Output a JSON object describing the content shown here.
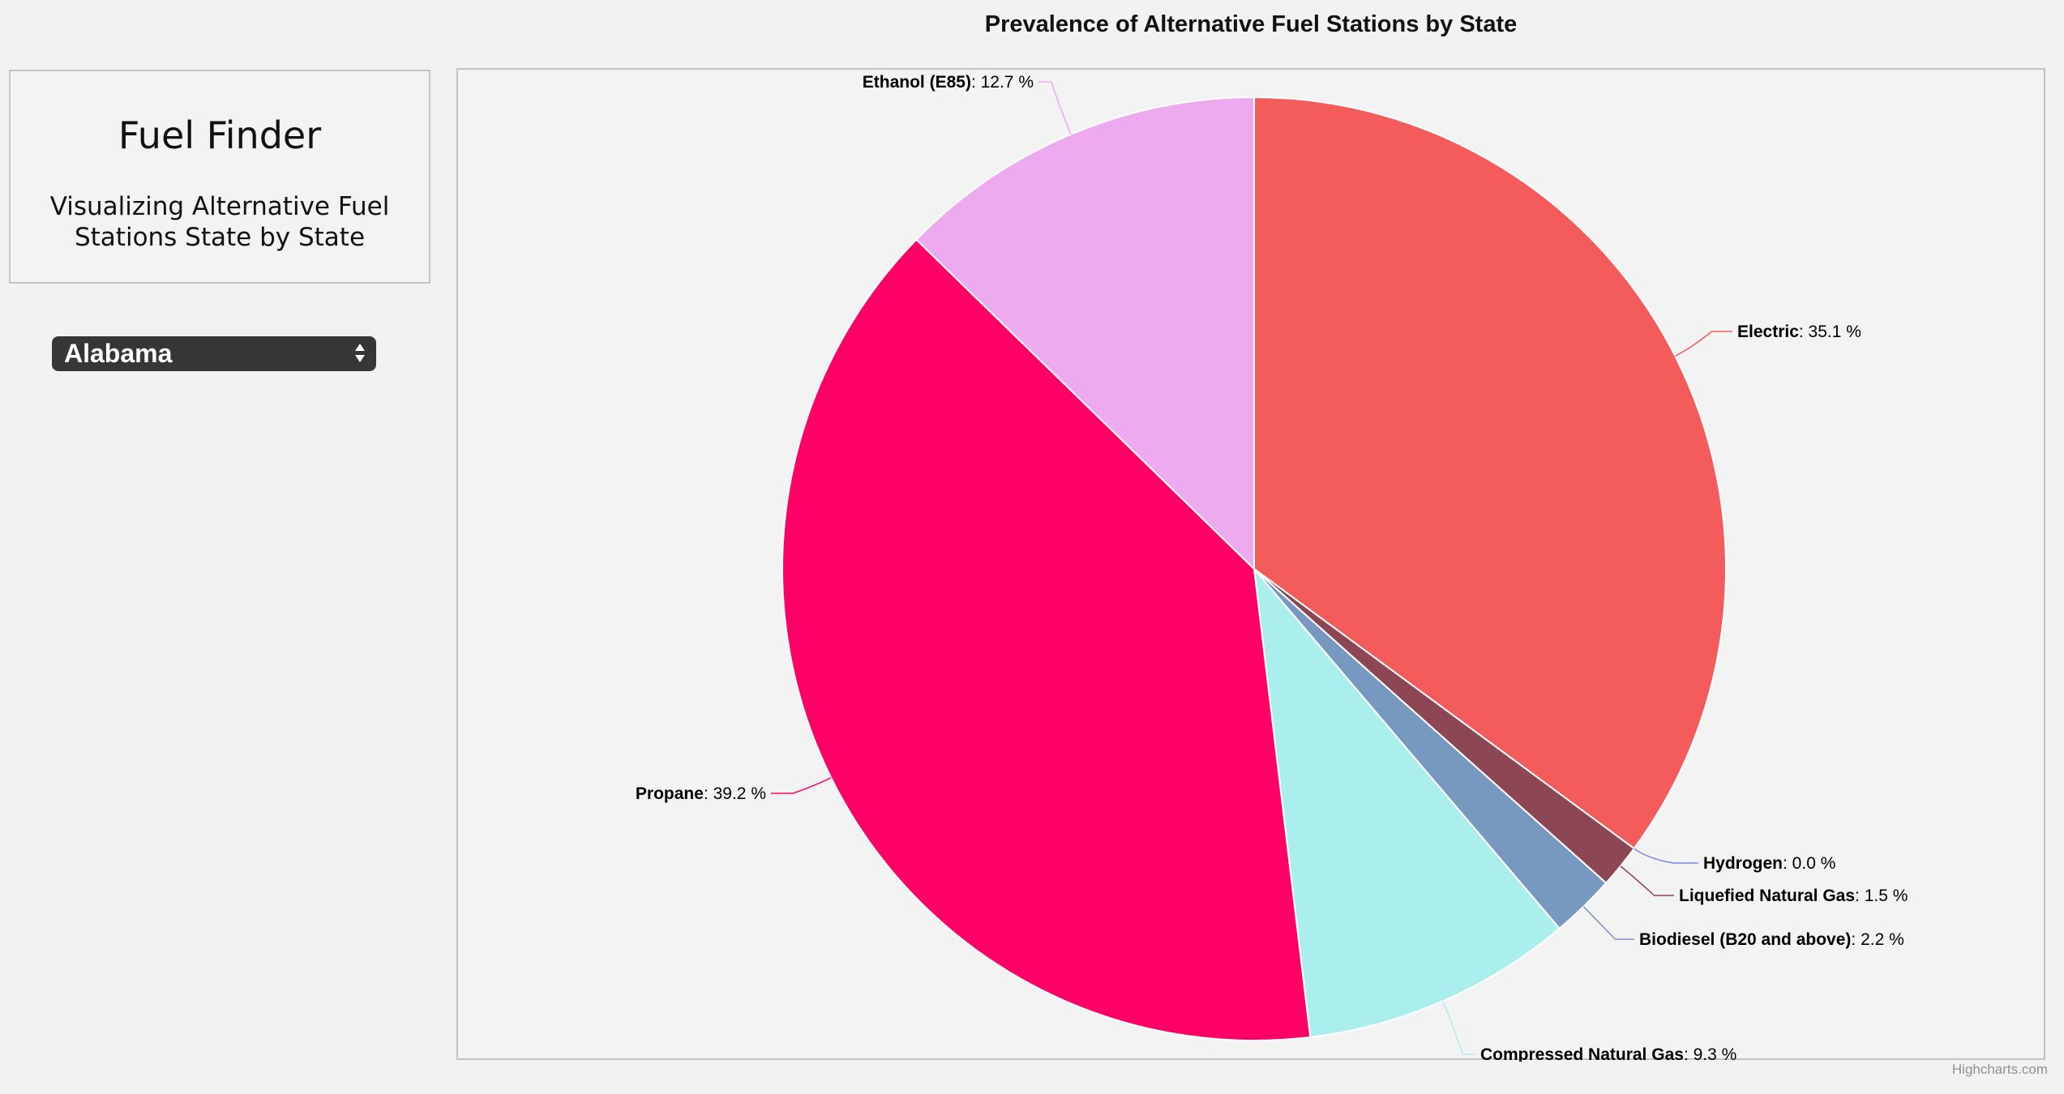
{
  "sidebar": {
    "app_title": "Fuel Finder",
    "app_subtitle": "Visualizing Alternative Fuel Stations State by State",
    "state_select": {
      "selected": "Alabama"
    }
  },
  "credits": "Highcharts.com",
  "chart_data": {
    "type": "pie",
    "title": "Prevalence of Alternative Fuel Stations by State",
    "value_suffix": " %",
    "slices": [
      {
        "name": "Electric",
        "value": 35.1,
        "color": "#f45b5b"
      },
      {
        "name": "Hydrogen",
        "value": 0.0,
        "color": "#8085e9"
      },
      {
        "name": "Liquefied Natural Gas",
        "value": 1.5,
        "color": "#8d4654"
      },
      {
        "name": "Biodiesel (B20 and above)",
        "value": 2.2,
        "color": "#7798bf"
      },
      {
        "name": "Compressed Natural Gas",
        "value": 9.3,
        "color": "#aaeeee"
      },
      {
        "name": "Propane",
        "value": 39.2,
        "color": "#ff0066"
      },
      {
        "name": "Ethanol (E85)",
        "value": 12.7,
        "color": "#eeaaee"
      }
    ]
  }
}
